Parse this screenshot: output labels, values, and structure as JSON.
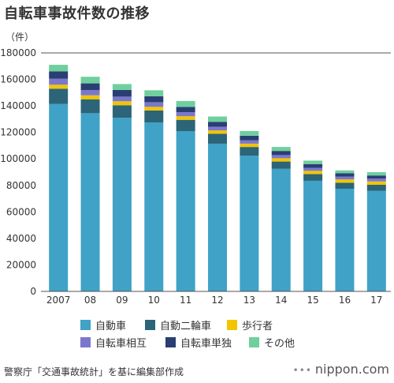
{
  "header": {
    "title": "自転車事故件数の推移",
    "unit": "（件）"
  },
  "colors": {
    "car": "#3fa2c6",
    "motorcycle": "#2c6478",
    "pedestrian": "#f2c500",
    "bicycle_vs_bicycle": "#7b78cc",
    "bicycle_alone": "#2a3e73",
    "other": "#6fcf9d",
    "axis_text": "#333333"
  },
  "chart_data": {
    "type": "bar",
    "stacked": true,
    "categories": [
      "2007",
      "08",
      "09",
      "10",
      "11",
      "12",
      "13",
      "14",
      "15",
      "16",
      "17"
    ],
    "series": [
      {
        "name": "自動車",
        "color_key": "car",
        "values": [
          141500,
          134500,
          131000,
          127500,
          121000,
          111500,
          102500,
          92500,
          83500,
          77500,
          76000
        ]
      },
      {
        "name": "自動二輪車",
        "color_key": "motorcycle",
        "values": [
          11500,
          10500,
          9500,
          9000,
          8500,
          7500,
          6500,
          5500,
          5000,
          4500,
          4500
        ]
      },
      {
        "name": "歩行者",
        "color_key": "pedestrian",
        "values": [
          3000,
          3000,
          3000,
          2800,
          2700,
          2500,
          2500,
          2500,
          2500,
          2500,
          2500
        ]
      },
      {
        "name": "自転車相互",
        "color_key": "bicycle_vs_bicycle",
        "values": [
          4500,
          4000,
          3500,
          3500,
          3000,
          2800,
          2500,
          2400,
          2200,
          2100,
          2200
        ]
      },
      {
        "name": "自転車単独",
        "color_key": "bicycle_alone",
        "values": [
          5500,
          5000,
          5000,
          4500,
          4000,
          3700,
          3500,
          3100,
          2900,
          2500,
          2300
        ]
      },
      {
        "name": "その他",
        "color_key": "other",
        "values": [
          5000,
          5000,
          4500,
          4500,
          4500,
          4000,
          3500,
          3000,
          2600,
          2200,
          2500
        ]
      }
    ],
    "ylim": [
      0,
      180000
    ],
    "yticks": [
      0,
      20000,
      40000,
      60000,
      80000,
      100000,
      120000,
      140000,
      160000,
      180000
    ],
    "grid": false,
    "legend_position": "bottom"
  },
  "legend": {
    "items": [
      {
        "label": "自動車",
        "color_key": "car"
      },
      {
        "label": "自動二輪車",
        "color_key": "motorcycle"
      },
      {
        "label": "歩行者",
        "color_key": "pedestrian"
      },
      {
        "label": "自転車相互",
        "color_key": "bicycle_vs_bicycle"
      },
      {
        "label": "自転車単独",
        "color_key": "bicycle_alone"
      },
      {
        "label": "その他",
        "color_key": "other"
      }
    ]
  },
  "footer": {
    "source": "警察庁「交通事故統計」を基に編集部作成",
    "brand": "nippon.com",
    "brand_dots": "•••"
  }
}
